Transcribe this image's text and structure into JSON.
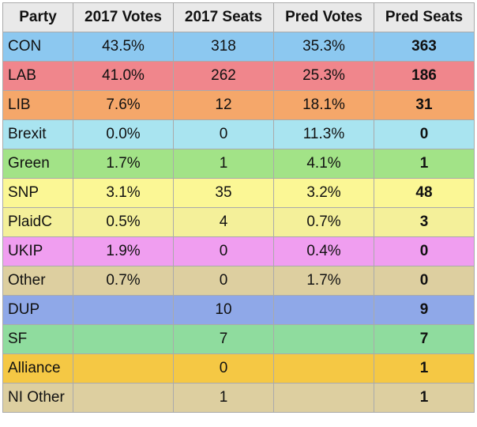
{
  "chart_data": {
    "type": "table",
    "columns": [
      "Party",
      "2017 Votes",
      "2017 Seats",
      "Pred Votes",
      "Pred Seats"
    ],
    "rows": [
      {
        "party": "CON",
        "votes_2017": "43.5%",
        "seats_2017": "318",
        "pred_votes": "35.3%",
        "pred_seats": "363",
        "color": "#8cc8f0"
      },
      {
        "party": "LAB",
        "votes_2017": "41.0%",
        "seats_2017": "262",
        "pred_votes": "25.3%",
        "pred_seats": "186",
        "color": "#f0868c"
      },
      {
        "party": "LIB",
        "votes_2017": "7.6%",
        "seats_2017": "12",
        "pred_votes": "18.1%",
        "pred_seats": "31",
        "color": "#f5a76a"
      },
      {
        "party": "Brexit",
        "votes_2017": "0.0%",
        "seats_2017": "0",
        "pred_votes": "11.3%",
        "pred_seats": "0",
        "color": "#a9e4f0"
      },
      {
        "party": "Green",
        "votes_2017": "1.7%",
        "seats_2017": "1",
        "pred_votes": "4.1%",
        "pred_seats": "1",
        "color": "#a2e387"
      },
      {
        "party": "SNP",
        "votes_2017": "3.1%",
        "seats_2017": "35",
        "pred_votes": "3.2%",
        "pred_seats": "48",
        "color": "#fbf795"
      },
      {
        "party": "PlaidC",
        "votes_2017": "0.5%",
        "seats_2017": "4",
        "pred_votes": "0.7%",
        "pred_seats": "3",
        "color": "#f4f09a"
      },
      {
        "party": "UKIP",
        "votes_2017": "1.9%",
        "seats_2017": "0",
        "pred_votes": "0.4%",
        "pred_seats": "0",
        "color": "#f09ef0"
      },
      {
        "party": "Other",
        "votes_2017": "0.7%",
        "seats_2017": "0",
        "pred_votes": "1.7%",
        "pred_seats": "0",
        "color": "#ddcfa0"
      },
      {
        "party": "DUP",
        "votes_2017": "",
        "seats_2017": "10",
        "pred_votes": "",
        "pred_seats": "9",
        "color": "#8fa8e8"
      },
      {
        "party": "SF",
        "votes_2017": "",
        "seats_2017": "7",
        "pred_votes": "",
        "pred_seats": "7",
        "color": "#8fdc9e"
      },
      {
        "party": "Alliance",
        "votes_2017": "",
        "seats_2017": "0",
        "pred_votes": "",
        "pred_seats": "1",
        "color": "#f5c844"
      },
      {
        "party": "NI Other",
        "votes_2017": "",
        "seats_2017": "1",
        "pred_votes": "",
        "pred_seats": "1",
        "color": "#ddcfa0"
      }
    ]
  }
}
